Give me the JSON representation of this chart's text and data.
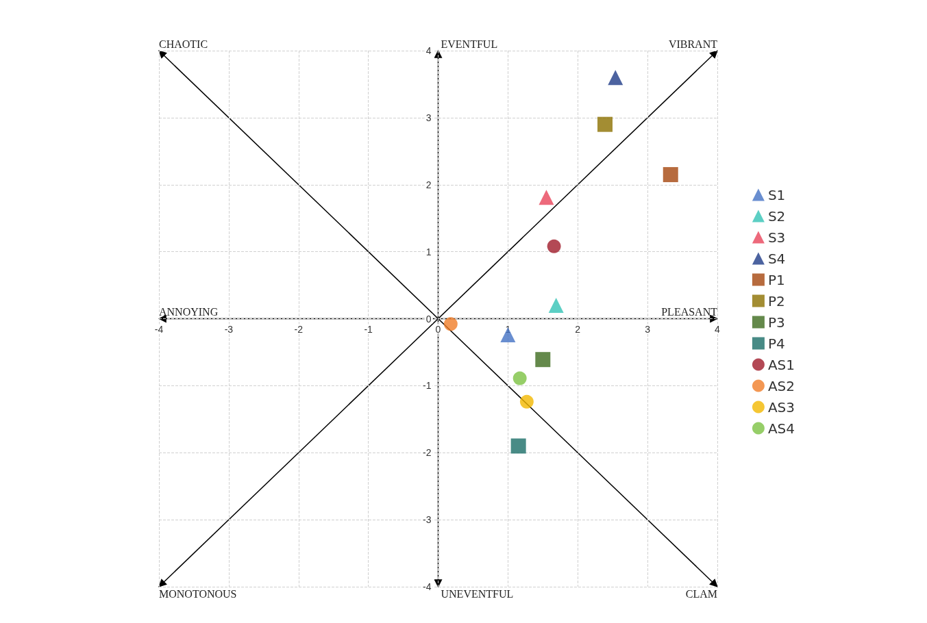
{
  "chart_data": {
    "type": "scatter",
    "xlim": [
      -4,
      4
    ],
    "ylim": [
      -4,
      4
    ],
    "xticks": [
      -4,
      -3,
      -2,
      -1,
      0,
      1,
      2,
      3,
      4
    ],
    "yticks": [
      -4,
      -3,
      -2,
      -1,
      0,
      1,
      2,
      3,
      4
    ],
    "grid": true,
    "legend": "right",
    "annotations": [
      "CHAOTIC",
      "EVENTFUL",
      "VIBRANT",
      "ANNOYING",
      "PLEASANT",
      "MONOTONOUS",
      "UNEVENTFUL",
      "CLAM"
    ],
    "series": [
      {
        "name": "S1",
        "color": "#4472c4",
        "marker": "triangle",
        "x": [
          1.0
        ],
        "values": [
          -0.24
        ]
      },
      {
        "name": "S2",
        "color": "#33c3b5",
        "marker": "triangle",
        "x": [
          1.69
        ],
        "values": [
          0.2
        ]
      },
      {
        "name": "S3",
        "color": "#e8445a",
        "marker": "triangle",
        "x": [
          1.55
        ],
        "values": [
          1.81
        ]
      },
      {
        "name": "S4",
        "color": "#1f3c88",
        "marker": "triangle",
        "x": [
          2.54
        ],
        "values": [
          3.6
        ]
      },
      {
        "name": "P1",
        "color": "#a5460e",
        "marker": "square",
        "x": [
          3.33
        ],
        "values": [
          2.15
        ]
      },
      {
        "name": "P2",
        "color": "#8c7000",
        "marker": "square",
        "x": [
          2.39
        ],
        "values": [
          2.9
        ]
      },
      {
        "name": "P3",
        "color": "#3d6b1e",
        "marker": "square",
        "x": [
          1.5
        ],
        "values": [
          -0.61
        ]
      },
      {
        "name": "P4",
        "color": "#1a6e68",
        "marker": "square",
        "x": [
          1.15
        ],
        "values": [
          -1.9
        ]
      },
      {
        "name": "AS1",
        "color": "#a01c2a",
        "marker": "circle",
        "x": [
          1.66
        ],
        "values": [
          1.08
        ]
      },
      {
        "name": "AS2",
        "color": "#f07d28",
        "marker": "circle",
        "x": [
          0.18
        ],
        "values": [
          -0.08
        ]
      },
      {
        "name": "AS3",
        "color": "#f2b800",
        "marker": "circle",
        "x": [
          1.27
        ],
        "values": [
          -1.24
        ]
      },
      {
        "name": "AS4",
        "color": "#7cc242",
        "marker": "circle",
        "x": [
          1.17
        ],
        "values": [
          -0.89
        ]
      }
    ]
  }
}
